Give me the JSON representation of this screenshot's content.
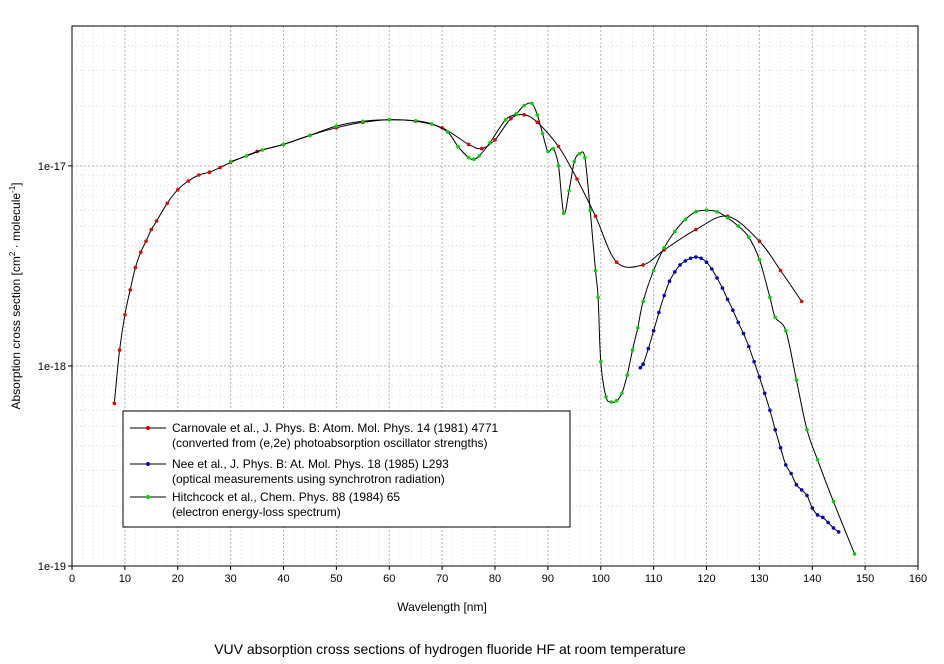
{
  "chart_data": {
    "type": "line",
    "caption": "VUV absorption cross sections of hydrogen fluoride HF at room temperature",
    "xlabel": "Wavelength [nm]",
    "ylabel": {
      "prefix": "Absorption cross section [cm",
      "exp1": "2",
      "middle": " · molecule",
      "exp2": "-1",
      "suffix": "]"
    },
    "xlim": [
      0,
      160
    ],
    "ylim": [
      1e-19,
      5e-17
    ],
    "yscale": "log",
    "x_ticks": [
      "0",
      "10",
      "20",
      "30",
      "40",
      "50",
      "60",
      "70",
      "80",
      "90",
      "100",
      "110",
      "120",
      "130",
      "140",
      "150",
      "160"
    ],
    "y_ticks": [
      {
        "value": 1e-17,
        "label": "1e-17"
      },
      {
        "value": 1e-18,
        "label": "1e-18"
      },
      {
        "value": 1e-19,
        "label": "1e-19"
      }
    ],
    "grid": true,
    "legend_position": "bottom-left",
    "series": [
      {
        "name": "Carnovale et al., J. Phys. B: Atom. Mol. Phys. 14 (1981) 4771",
        "note": "(converted from (e,2e) photoabsorption oscillator strengths)",
        "color": "#e00000",
        "points": [
          [
            8,
            6.5e-19
          ],
          [
            9,
            1.2e-18
          ],
          [
            10,
            1.8e-18
          ],
          [
            11,
            2.4e-18
          ],
          [
            12,
            3.1e-18
          ],
          [
            13,
            3.7e-18
          ],
          [
            14,
            4.2e-18
          ],
          [
            15,
            4.8e-18
          ],
          [
            16,
            5.3e-18
          ],
          [
            18,
            6.5e-18
          ],
          [
            20,
            7.6e-18
          ],
          [
            22,
            8.4e-18
          ],
          [
            24,
            9e-18
          ],
          [
            26,
            9.3e-18
          ],
          [
            28,
            9.8e-18
          ],
          [
            30,
            1.04e-17
          ],
          [
            35,
            1.18e-17
          ],
          [
            40,
            1.28e-17
          ],
          [
            45,
            1.42e-17
          ],
          [
            50,
            1.55e-17
          ],
          [
            55,
            1.65e-17
          ],
          [
            60,
            1.7e-17
          ],
          [
            65,
            1.67e-17
          ],
          [
            70,
            1.55e-17
          ],
          [
            75,
            1.28e-17
          ],
          [
            77.5,
            1.22e-17
          ],
          [
            80,
            1.35e-17
          ],
          [
            83,
            1.72e-17
          ],
          [
            85.5,
            1.8e-17
          ],
          [
            88,
            1.65e-17
          ],
          [
            92,
            1.25e-17
          ],
          [
            95.5,
            8.6e-18
          ],
          [
            99,
            5.6e-18
          ],
          [
            103,
            3.3e-18
          ],
          [
            108,
            3.2e-18
          ],
          [
            112,
            3.8e-18
          ],
          [
            118,
            4.8e-18
          ],
          [
            124,
            5.6e-18
          ],
          [
            130,
            4.2e-18
          ],
          [
            134,
            3e-18
          ],
          [
            138,
            2.1e-18
          ]
        ]
      },
      {
        "name": "Nee et al., J. Phys. B: At. Mol. Phys. 18 (1985) L293",
        "note": "(optical measurements using synchrotron radiation)",
        "color": "#0000c0",
        "points": [
          [
            107.5,
            9.8e-19
          ],
          [
            108,
            1.02e-18
          ],
          [
            109,
            1.22e-18
          ],
          [
            110,
            1.5e-18
          ],
          [
            111,
            1.85e-18
          ],
          [
            112,
            2.25e-18
          ],
          [
            113,
            2.65e-18
          ],
          [
            114,
            2.95e-18
          ],
          [
            115,
            3.2e-18
          ],
          [
            116,
            3.35e-18
          ],
          [
            117,
            3.45e-18
          ],
          [
            118,
            3.5e-18
          ],
          [
            119,
            3.45e-18
          ],
          [
            120,
            3.3e-18
          ],
          [
            121,
            3.05e-18
          ],
          [
            122,
            2.75e-18
          ],
          [
            123,
            2.45e-18
          ],
          [
            124,
            2.15e-18
          ],
          [
            125,
            1.9e-18
          ],
          [
            126,
            1.65e-18
          ],
          [
            127,
            1.45e-18
          ],
          [
            128,
            1.25e-18
          ],
          [
            129,
            1.05e-18
          ],
          [
            130,
            8.8e-19
          ],
          [
            131,
            7.3e-19
          ],
          [
            132,
            6e-19
          ],
          [
            133,
            4.8e-19
          ],
          [
            134,
            3.9e-19
          ],
          [
            135,
            3.2e-19
          ],
          [
            136,
            2.9e-19
          ],
          [
            137,
            2.55e-19
          ],
          [
            138,
            2.4e-19
          ],
          [
            139,
            2.25e-19
          ],
          [
            140,
            1.95e-19
          ],
          [
            141,
            1.8e-19
          ],
          [
            142,
            1.75e-19
          ],
          [
            143,
            1.65e-19
          ],
          [
            144,
            1.55e-19
          ],
          [
            145,
            1.48e-19
          ]
        ]
      },
      {
        "name": "Hitchcock et al., Chem. Phys. 88 (1984) 65",
        "note": "(electron energy-loss spectrum)",
        "color": "#00d000",
        "points": [
          [
            30,
            1.05e-17
          ],
          [
            33,
            1.12e-17
          ],
          [
            36,
            1.2e-17
          ],
          [
            40,
            1.28e-17
          ],
          [
            45,
            1.42e-17
          ],
          [
            50,
            1.58e-17
          ],
          [
            55,
            1.67e-17
          ],
          [
            60,
            1.7e-17
          ],
          [
            65,
            1.68e-17
          ],
          [
            68,
            1.62e-17
          ],
          [
            71,
            1.48e-17
          ],
          [
            73,
            1.25e-17
          ],
          [
            75,
            1.1e-17
          ],
          [
            76,
            1.08e-17
          ],
          [
            77,
            1.12e-17
          ],
          [
            79,
            1.3e-17
          ],
          [
            82,
            1.7e-17
          ],
          [
            84,
            1.82e-17
          ],
          [
            85.5,
            2e-17
          ],
          [
            87,
            2.05e-17
          ],
          [
            88,
            1.8e-17
          ],
          [
            89,
            1.45e-17
          ],
          [
            90,
            1.18e-17
          ],
          [
            91,
            1.22e-17
          ],
          [
            92,
            1e-17
          ],
          [
            93,
            5.8e-18
          ],
          [
            94,
            7.5e-18
          ],
          [
            95,
            1.05e-17
          ],
          [
            96,
            1.15e-17
          ],
          [
            97,
            1.1e-17
          ],
          [
            98,
            6e-18
          ],
          [
            99,
            3e-18
          ],
          [
            99.5,
            2.2e-18
          ],
          [
            100,
            1.05e-18
          ],
          [
            101,
            7e-19
          ],
          [
            102,
            6.6e-19
          ],
          [
            103,
            6.7e-19
          ],
          [
            104,
            7.3e-19
          ],
          [
            105,
            9e-19
          ],
          [
            106,
            1.2e-18
          ],
          [
            107,
            1.55e-18
          ],
          [
            108,
            2.1e-18
          ],
          [
            110,
            3e-18
          ],
          [
            112,
            3.9e-18
          ],
          [
            114,
            4.7e-18
          ],
          [
            116,
            5.4e-18
          ],
          [
            118,
            5.9e-18
          ],
          [
            120,
            6e-18
          ],
          [
            122,
            5.9e-18
          ],
          [
            124,
            5.5e-18
          ],
          [
            126,
            5e-18
          ],
          [
            128,
            4.4e-18
          ],
          [
            130,
            3.4e-18
          ],
          [
            132,
            2.2e-18
          ],
          [
            133,
            1.75e-18
          ],
          [
            135,
            1.5e-18
          ],
          [
            137,
            8.5e-19
          ],
          [
            139,
            4.8e-19
          ],
          [
            141,
            3.4e-19
          ],
          [
            144,
            2.1e-19
          ],
          [
            148,
            1.15e-19
          ]
        ]
      }
    ]
  }
}
